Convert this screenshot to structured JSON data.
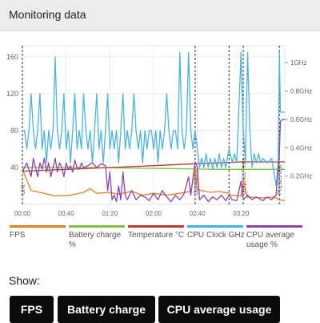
{
  "header": {
    "title": "Monitoring data"
  },
  "chart_data": {
    "type": "line",
    "x_ticks": [
      "00:00",
      "00:40",
      "01:20",
      "02:00",
      "02:40",
      "03:20"
    ],
    "y_left_ticks": [
      "40",
      "80",
      "120",
      "160"
    ],
    "y_right_ticks": [
      "0.2GHz",
      "0.4GHz",
      "0.6GHz",
      "0.8GHz",
      "1GHz"
    ],
    "ylim_left": [
      0,
      172
    ],
    "ylim_right": [
      0,
      1.12
    ],
    "events": [
      {
        "t": 0.0,
        "label": "Unit"
      },
      {
        "t": 0.79,
        "label": "Gameplay"
      },
      {
        "t": 0.945,
        "label": ""
      },
      {
        "t": 1.01,
        "label": "Graphics Tests"
      },
      {
        "t": 1.175,
        "label": "Physics test"
      }
    ],
    "series": [
      {
        "name": "FPS",
        "color": "#e87d22",
        "points": [
          [
            0,
            38
          ],
          [
            0.04,
            15
          ],
          [
            0.1,
            12
          ],
          [
            0.15,
            9
          ],
          [
            0.22,
            10
          ],
          [
            0.28,
            13
          ],
          [
            0.31,
            17
          ],
          [
            0.34,
            12
          ],
          [
            0.4,
            13
          ],
          [
            0.44,
            11
          ],
          [
            0.5,
            14
          ],
          [
            0.55,
            10
          ],
          [
            0.6,
            12
          ],
          [
            0.66,
            10
          ],
          [
            0.72,
            12
          ],
          [
            0.77,
            14
          ],
          [
            0.79,
            38
          ],
          [
            0.8,
            16
          ],
          [
            0.86,
            13
          ],
          [
            0.9,
            14
          ],
          [
            0.945,
            12
          ],
          [
            0.95,
            10
          ],
          [
            1.0,
            9
          ],
          [
            1.01,
            25
          ],
          [
            1.03,
            8
          ],
          [
            1.1,
            7
          ],
          [
            1.15,
            8
          ],
          [
            1.175,
            5
          ],
          [
            1.2,
            4
          ]
        ]
      },
      {
        "name": "Battery charge %",
        "color": "#7fc241",
        "points": [
          [
            0,
            40
          ],
          [
            0.3,
            40
          ],
          [
            0.6,
            39
          ],
          [
            0.9,
            38
          ],
          [
            1.2,
            38
          ]
        ]
      },
      {
        "name": "Temperature °C",
        "color": "#c0392b",
        "points": [
          [
            0,
            36
          ],
          [
            0.2,
            38
          ],
          [
            0.4,
            40
          ],
          [
            0.6,
            42
          ],
          [
            0.79,
            44
          ],
          [
            0.9,
            45
          ],
          [
            1.0,
            46
          ],
          [
            1.1,
            46
          ],
          [
            1.2,
            46
          ]
        ]
      },
      {
        "name": "CPU Clock GHz",
        "color": "#4ab3e0",
        "points": [
          [
            0,
            80
          ],
          [
            0.01,
            80
          ],
          [
            0.02,
            60
          ],
          [
            0.03,
            80
          ],
          [
            0.04,
            120
          ],
          [
            0.05,
            80
          ],
          [
            0.06,
            60
          ],
          [
            0.07,
            80
          ],
          [
            0.08,
            120
          ],
          [
            0.09,
            60
          ],
          [
            0.1,
            80
          ],
          [
            0.11,
            45
          ],
          [
            0.12,
            80
          ],
          [
            0.13,
            60
          ],
          [
            0.14,
            80
          ],
          [
            0.15,
            160
          ],
          [
            0.16,
            80
          ],
          [
            0.17,
            60
          ],
          [
            0.18,
            80
          ],
          [
            0.19,
            120
          ],
          [
            0.2,
            60
          ],
          [
            0.21,
            80
          ],
          [
            0.22,
            45
          ],
          [
            0.23,
            80
          ],
          [
            0.24,
            120
          ],
          [
            0.25,
            60
          ],
          [
            0.26,
            80
          ],
          [
            0.27,
            60
          ],
          [
            0.28,
            120
          ],
          [
            0.29,
            80
          ],
          [
            0.3,
            60
          ],
          [
            0.31,
            80
          ],
          [
            0.32,
            45
          ],
          [
            0.33,
            80
          ],
          [
            0.34,
            120
          ],
          [
            0.35,
            60
          ],
          [
            0.36,
            80
          ],
          [
            0.37,
            45
          ],
          [
            0.38,
            80
          ],
          [
            0.39,
            120
          ],
          [
            0.4,
            60
          ],
          [
            0.41,
            80
          ],
          [
            0.42,
            60
          ],
          [
            0.43,
            80
          ],
          [
            0.44,
            45
          ],
          [
            0.45,
            80
          ],
          [
            0.46,
            120
          ],
          [
            0.47,
            60
          ],
          [
            0.48,
            80
          ],
          [
            0.49,
            60
          ],
          [
            0.5,
            80
          ],
          [
            0.51,
            120
          ],
          [
            0.52,
            80
          ],
          [
            0.53,
            60
          ],
          [
            0.54,
            80
          ],
          [
            0.55,
            45
          ],
          [
            0.56,
            80
          ],
          [
            0.57,
            60
          ],
          [
            0.58,
            80
          ],
          [
            0.59,
            80
          ],
          [
            0.6,
            60
          ],
          [
            0.61,
            80
          ],
          [
            0.62,
            45
          ],
          [
            0.63,
            80
          ],
          [
            0.64,
            60
          ],
          [
            0.65,
            80
          ],
          [
            0.66,
            120
          ],
          [
            0.67,
            80
          ],
          [
            0.68,
            60
          ],
          [
            0.69,
            80
          ],
          [
            0.7,
            80
          ],
          [
            0.71,
            60
          ],
          [
            0.72,
            165
          ],
          [
            0.73,
            80
          ],
          [
            0.74,
            60
          ],
          [
            0.75,
            80
          ],
          [
            0.76,
            165
          ],
          [
            0.77,
            80
          ],
          [
            0.78,
            60
          ],
          [
            0.79,
            80
          ],
          [
            0.8,
            60
          ],
          [
            0.81,
            40
          ],
          [
            0.82,
            50
          ],
          [
            0.83,
            40
          ],
          [
            0.84,
            55
          ],
          [
            0.85,
            40
          ],
          [
            0.86,
            50
          ],
          [
            0.87,
            38
          ],
          [
            0.88,
            50
          ],
          [
            0.89,
            40
          ],
          [
            0.9,
            55
          ],
          [
            0.91,
            40
          ],
          [
            0.92,
            50
          ],
          [
            0.93,
            40
          ],
          [
            0.945,
            60
          ],
          [
            0.96,
            45
          ],
          [
            0.97,
            55
          ],
          [
            0.98,
            45
          ],
          [
            1.0,
            165
          ],
          [
            1.01,
            80
          ],
          [
            1.02,
            45
          ],
          [
            1.03,
            165
          ],
          [
            1.04,
            80
          ],
          [
            1.05,
            40
          ],
          [
            1.06,
            55
          ],
          [
            1.07,
            45
          ],
          [
            1.08,
            55
          ],
          [
            1.09,
            45
          ],
          [
            1.1,
            50
          ],
          [
            1.12,
            45
          ],
          [
            1.14,
            50
          ],
          [
            1.16,
            20
          ],
          [
            1.17,
            45
          ],
          [
            1.175,
            165
          ],
          [
            1.18,
            100
          ],
          [
            1.19,
            100
          ],
          [
            1.2,
            100
          ]
        ]
      },
      {
        "name": "CPU average usage %",
        "color": "#8e44ad",
        "points": [
          [
            0,
            35
          ],
          [
            0.02,
            45
          ],
          [
            0.04,
            30
          ],
          [
            0.05,
            50
          ],
          [
            0.06,
            40
          ],
          [
            0.07,
            30
          ],
          [
            0.08,
            45
          ],
          [
            0.09,
            38
          ],
          [
            0.1,
            50
          ],
          [
            0.11,
            35
          ],
          [
            0.12,
            45
          ],
          [
            0.13,
            30
          ],
          [
            0.14,
            40
          ],
          [
            0.15,
            50
          ],
          [
            0.16,
            35
          ],
          [
            0.17,
            45
          ],
          [
            0.18,
            40
          ],
          [
            0.19,
            30
          ],
          [
            0.2,
            45
          ],
          [
            0.21,
            38
          ],
          [
            0.22,
            42
          ],
          [
            0.23,
            35
          ],
          [
            0.24,
            48
          ],
          [
            0.25,
            40
          ],
          [
            0.26,
            38
          ],
          [
            0.27,
            45
          ],
          [
            0.28,
            40
          ],
          [
            0.3,
            42
          ],
          [
            0.32,
            45
          ],
          [
            0.34,
            40
          ],
          [
            0.36,
            44
          ],
          [
            0.38,
            42
          ],
          [
            0.39,
            15
          ],
          [
            0.4,
            35
          ],
          [
            0.41,
            5
          ],
          [
            0.42,
            10
          ],
          [
            0.43,
            3
          ],
          [
            0.44,
            20
          ],
          [
            0.45,
            5
          ],
          [
            0.46,
            35
          ],
          [
            0.47,
            10
          ],
          [
            0.48,
            5
          ],
          [
            0.5,
            15
          ],
          [
            0.52,
            5
          ],
          [
            0.54,
            10
          ],
          [
            0.56,
            8
          ],
          [
            0.58,
            4
          ],
          [
            0.6,
            12
          ],
          [
            0.62,
            5
          ],
          [
            0.64,
            15
          ],
          [
            0.66,
            8
          ],
          [
            0.68,
            3
          ],
          [
            0.7,
            10
          ],
          [
            0.72,
            5
          ],
          [
            0.74,
            12
          ],
          [
            0.76,
            30
          ],
          [
            0.77,
            10
          ],
          [
            0.79,
            46
          ],
          [
            0.8,
            40
          ],
          [
            0.81,
            5
          ],
          [
            0.83,
            10
          ],
          [
            0.85,
            3
          ],
          [
            0.87,
            8
          ],
          [
            0.89,
            5
          ],
          [
            0.91,
            10
          ],
          [
            0.93,
            4
          ],
          [
            0.945,
            10
          ],
          [
            0.96,
            5
          ],
          [
            0.98,
            4
          ],
          [
            1.0,
            25
          ],
          [
            1.01,
            5
          ],
          [
            1.03,
            10
          ],
          [
            1.05,
            5
          ],
          [
            1.07,
            8
          ],
          [
            1.1,
            4
          ],
          [
            1.12,
            8
          ],
          [
            1.14,
            5
          ],
          [
            1.16,
            10
          ],
          [
            1.17,
            40
          ],
          [
            1.175,
            55
          ],
          [
            1.18,
            90
          ],
          [
            1.19,
            92
          ],
          [
            1.2,
            92
          ]
        ]
      }
    ]
  },
  "legend": [
    {
      "label": "FPS",
      "color": "#e87d22"
    },
    {
      "label": "Battery charge %",
      "color": "#7fc241"
    },
    {
      "label": "Temperature °C",
      "color": "#c0392b"
    },
    {
      "label": "CPU Clock GHz",
      "color": "#4ab3e0"
    },
    {
      "label": "CPU average usage %",
      "color": "#8e44ad"
    }
  ],
  "show": {
    "label": "Show:",
    "buttons": [
      "FPS",
      "Battery charge",
      "CPU average usage"
    ]
  }
}
